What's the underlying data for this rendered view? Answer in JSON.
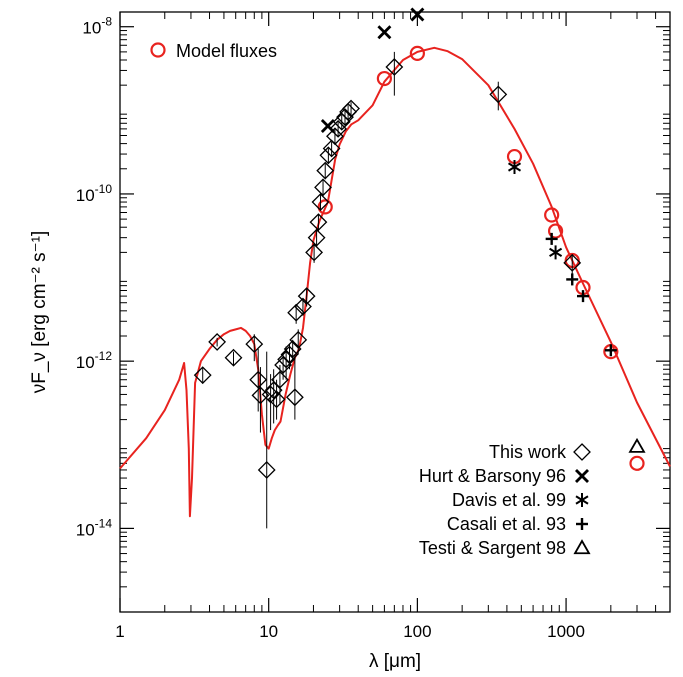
{
  "chart_data": {
    "type": "scatter",
    "title": "",
    "xlabel": "λ [μm]",
    "ylabel": "νF_ν [erg cm⁻² s⁻¹]",
    "xscale": "log",
    "yscale": "log",
    "xlim": [
      1,
      5000
    ],
    "ylim": [
      1e-15,
      1.5e-08
    ],
    "x_ticks": [
      {
        "v": 1,
        "label": "1"
      },
      {
        "v": 10,
        "label": "10"
      },
      {
        "v": 100,
        "label": "100"
      },
      {
        "v": 1000,
        "label": "1000"
      }
    ],
    "y_ticks": [
      {
        "v": 1e-14,
        "base": "10",
        "exp": "-14"
      },
      {
        "v": 1e-12,
        "base": "10",
        "exp": "-12"
      },
      {
        "v": 1e-10,
        "base": "10",
        "exp": "-10"
      },
      {
        "v": 1e-08,
        "base": "10",
        "exp": "-8"
      }
    ],
    "legend_top_left": {
      "label": "Model fluxes",
      "marker": "circle",
      "color": "#e8231f"
    },
    "legend_bottom_right": [
      {
        "label": "This work",
        "marker": "diamond"
      },
      {
        "label": "Hurt & Barsony 96",
        "marker": "x"
      },
      {
        "label": "Davis et al. 99",
        "marker": "asterisk"
      },
      {
        "label": "Casali et al. 93",
        "marker": "plus"
      },
      {
        "label": "Testi & Sargent 98",
        "marker": "triangle"
      }
    ],
    "series": [
      {
        "name": "Model fluxes",
        "marker": "line",
        "color": "#e8231f",
        "points": [
          [
            1.0,
            5.2e-14
          ],
          [
            1.5,
            1.2e-13
          ],
          [
            2.0,
            2.6e-13
          ],
          [
            2.5,
            6e-13
          ],
          [
            2.7,
            9.5e-13
          ],
          [
            2.8,
            4.5e-13
          ],
          [
            2.9,
            9e-14
          ],
          [
            2.95,
            1.4e-14
          ],
          [
            3.05,
            4e-14
          ],
          [
            3.2,
            5.5e-13
          ],
          [
            3.5,
            1e-12
          ],
          [
            4.0,
            1.4e-12
          ],
          [
            4.5,
            1.8e-12
          ],
          [
            5.0,
            2.1e-12
          ],
          [
            5.5,
            2.3e-12
          ],
          [
            6.0,
            2.4e-12
          ],
          [
            6.5,
            2.5e-12
          ],
          [
            7.0,
            2.3e-12
          ],
          [
            7.5,
            2e-12
          ],
          [
            8.0,
            1.6e-12
          ],
          [
            8.5,
            8e-13
          ],
          [
            9.0,
            2.3e-13
          ],
          [
            9.5,
            1e-13
          ],
          [
            10.0,
            9e-14
          ],
          [
            10.5,
            1.2e-13
          ],
          [
            11.0,
            1.5e-13
          ],
          [
            11.5,
            1.7e-13
          ],
          [
            12.0,
            1.9e-13
          ],
          [
            13.0,
            4e-13
          ],
          [
            14.0,
            7e-13
          ],
          [
            15.0,
            1.1e-12
          ],
          [
            16.0,
            1.4e-12
          ],
          [
            17.0,
            2.5e-12
          ],
          [
            18.0,
            6e-12
          ],
          [
            19.0,
            1.5e-11
          ],
          [
            20.0,
            2.8e-11
          ],
          [
            22.0,
            4.8e-11
          ],
          [
            25.0,
            8e-11
          ],
          [
            28.0,
            2.6e-10
          ],
          [
            30.0,
            3.9e-10
          ],
          [
            33.0,
            5.6e-10
          ],
          [
            36.0,
            6.8e-10
          ],
          [
            40.0,
            7.6e-10
          ],
          [
            50.0,
            1.15e-09
          ],
          [
            60.0,
            2.2e-09
          ],
          [
            80.0,
            4e-09
          ],
          [
            100.0,
            5e-09
          ],
          [
            130.0,
            5.6e-09
          ],
          [
            160.0,
            5.1e-09
          ],
          [
            200.0,
            4.1e-09
          ],
          [
            300.0,
            2e-09
          ],
          [
            450.0,
            6e-10
          ],
          [
            600.0,
            2.3e-10
          ],
          [
            800.0,
            7e-11
          ],
          [
            1000.0,
            2.3e-11
          ],
          [
            1300.0,
            8.5e-12
          ],
          [
            2000.0,
            1.7e-12
          ],
          [
            3000.0,
            3.2e-13
          ],
          [
            5000.0,
            5.5e-14
          ]
        ]
      },
      {
        "name": "Model fluxes",
        "marker": "circle",
        "color": "#e8231f",
        "points": [
          [
            24.0,
            7e-11
          ],
          [
            60.0,
            2.4e-09
          ],
          [
            100.0,
            4.8e-09
          ],
          [
            450.0,
            2.8e-10
          ],
          [
            800.0,
            5.6e-11
          ],
          [
            850.0,
            3.6e-11
          ],
          [
            1100.0,
            1.6e-11
          ],
          [
            1300.0,
            7.6e-12
          ],
          [
            2000.0,
            1.3e-12
          ],
          [
            3000.0,
            6e-14
          ]
        ]
      },
      {
        "name": "This work",
        "marker": "diamond",
        "color": "#000000",
        "points": [
          {
            "x": 3.6,
            "y": 6.8e-13,
            "err": [
              5.6e-13,
              8.3e-13
            ]
          },
          {
            "x": 4.5,
            "y": 1.7e-12,
            "err": [
              1.5e-12,
              1.9e-12
            ]
          },
          {
            "x": 5.8,
            "y": 1.1e-12,
            "err": [
              9e-13,
              1.3e-12
            ]
          },
          {
            "x": 8.0,
            "y": 1.6e-12,
            "err": [
              1e-12,
              2.1e-12
            ]
          },
          {
            "x": 8.5,
            "y": 6e-13,
            "err": [
              2.5e-13,
              1.4e-12
            ]
          },
          {
            "x": 8.8,
            "y": 3.9e-13,
            "err": [
              1.4e-13,
              8.5e-13
            ]
          },
          {
            "x": 9.7,
            "y": 5e-14,
            "err": [
              1e-14,
              1.3e-12
            ]
          },
          {
            "x": 10.3,
            "y": 4e-13,
            "err": [
              1.5e-13,
              7e-13
            ]
          },
          {
            "x": 10.8,
            "y": 4.5e-13,
            "err": [
              1.8e-13,
              8e-13
            ]
          },
          {
            "x": 11.3,
            "y": 3.5e-13,
            "err": [
              2e-13,
              6e-13
            ]
          },
          {
            "x": 11.9,
            "y": 6e-13,
            "err": [
              3e-13,
              9e-13
            ]
          },
          {
            "x": 12.5,
            "y": 9e-13,
            "err": [
              6e-13,
              1.2e-12
            ]
          },
          {
            "x": 13.1,
            "y": 1.05e-12,
            "err": [
              6e-13,
              1.5e-12
            ]
          },
          {
            "x": 13.8,
            "y": 1.2e-12,
            "err": [
              8e-13,
              1.6e-12
            ]
          },
          {
            "x": 14.5,
            "y": 1.4e-12,
            "err": [
              1e-12,
              1.8e-12
            ]
          },
          {
            "x": 15.0,
            "y": 3.7e-13,
            "err": [
              2e-13,
              1.2e-12
            ]
          },
          {
            "x": 15.3,
            "y": 3.8e-12,
            "err": [
              2.8e-12,
              4.8e-12
            ]
          },
          {
            "x": 15.8,
            "y": 1.8e-12,
            "err": [
              1.2e-12,
              2.4e-12
            ]
          },
          {
            "x": 17.0,
            "y": 4.5e-12,
            "err": [
              3.5e-12,
              5.5e-12
            ]
          },
          {
            "x": 18.0,
            "y": 6e-12,
            "err": [
              4.5e-12,
              7.5e-12
            ]
          },
          {
            "x": 20.2,
            "y": 2e-11,
            "err": [
              1.5e-11,
              2.5e-11
            ]
          },
          {
            "x": 21.0,
            "y": 3e-11,
            "err": [
              2.3e-11,
              3.7e-11
            ]
          },
          {
            "x": 21.6,
            "y": 4.6e-11,
            "err": [
              3.6e-11,
              5.6e-11
            ]
          },
          {
            "x": 22.3,
            "y": 8e-11,
            "err": [
              6.3e-11,
              9.7e-11
            ]
          },
          {
            "x": 23.2,
            "y": 1.2e-10,
            "err": [
              9.5e-11,
              1.45e-10
            ]
          },
          {
            "x": 24.0,
            "y": 1.9e-10,
            "err": [
              1.5e-10,
              2.3e-10
            ]
          },
          {
            "x": 25.2,
            "y": 2.9e-10,
            "err": [
              2.3e-10,
              3.5e-10
            ]
          },
          {
            "x": 26.5,
            "y": 3.5e-10,
            "err": [
              2.8e-10,
              4.2e-10
            ]
          },
          {
            "x": 27.9,
            "y": 4.9e-10,
            "err": [
              3.9e-10,
              5.9e-10
            ]
          },
          {
            "x": 29.3,
            "y": 6e-10,
            "err": [
              4.8e-10,
              7.2e-10
            ]
          },
          {
            "x": 31.0,
            "y": 7.3e-10,
            "err": [
              5.8e-10,
              8.8e-10
            ]
          },
          {
            "x": 32.6,
            "y": 8.3e-10,
            "err": [
              6.6e-10,
              1e-09
            ]
          },
          {
            "x": 34.2,
            "y": 9.6e-10,
            "err": [
              7.6e-10,
              1.15e-09
            ]
          },
          {
            "x": 35.8,
            "y": 1.05e-09,
            "err": [
              8.4e-10,
              1.25e-09
            ]
          },
          {
            "x": 70.0,
            "y": 3.3e-09,
            "err": [
              1.5e-09,
              5e-09
            ]
          },
          {
            "x": 350.0,
            "y": 1.55e-09,
            "err": [
              1e-09,
              2.2e-09
            ]
          },
          {
            "x": 1100.0,
            "y": 1.5e-11,
            "err": [
              1.1e-11,
              1.9e-11
            ]
          }
        ]
      },
      {
        "name": "Hurt & Barsony 96",
        "marker": "x",
        "color": "#000000",
        "points": [
          [
            25.0,
            6.5e-10
          ],
          [
            60.0,
            8.6e-09
          ],
          [
            100.0,
            1.4e-08
          ]
        ]
      },
      {
        "name": "Davis et al. 99",
        "marker": "asterisk",
        "color": "#000000",
        "points": [
          [
            450.0,
            2.1e-10
          ],
          [
            850.0,
            2e-11
          ]
        ]
      },
      {
        "name": "Casali et al. 93",
        "marker": "plus",
        "color": "#000000",
        "points": [
          [
            800.0,
            2.9e-11
          ],
          [
            1100.0,
            9.5e-12
          ],
          [
            1300.0,
            6e-12
          ],
          [
            2000.0,
            1.35e-12
          ]
        ]
      },
      {
        "name": "Testi & Sargent 98",
        "marker": "triangle",
        "color": "#000000",
        "points": [
          [
            3000.0,
            9.5e-14
          ]
        ]
      }
    ]
  }
}
